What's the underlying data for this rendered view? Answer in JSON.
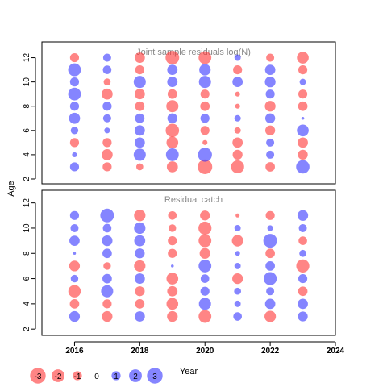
{
  "colors": {
    "positive": "#3333ff",
    "negative": "#ff3333",
    "panel_title": "#888888",
    "axis": "#000000"
  },
  "ylabel": "Age",
  "xlabel": "Year",
  "legend": {
    "values": [
      -3,
      -2,
      -1,
      0,
      1,
      2,
      3
    ]
  },
  "chart_data": [
    {
      "type": "scatter",
      "subtype": "bubble",
      "title": "Joint sample residuals log(N)",
      "xlim": [
        2015,
        2024
      ],
      "ylim": [
        1.6,
        13.3
      ],
      "xticks": [
        2016,
        2018,
        2020,
        2022,
        2024
      ],
      "yticks": [
        2,
        4,
        6,
        8,
        10,
        12
      ],
      "years": [
        2016,
        2017,
        2018,
        2019,
        2020,
        2021,
        2022,
        2023
      ],
      "ages": [
        3,
        4,
        5,
        6,
        7,
        8,
        9,
        10,
        11,
        12
      ],
      "residuals": [
        [
          1.0,
          0.3,
          -1.0,
          0.7,
          1.5,
          1.0,
          2.0,
          1.0,
          2.0,
          -1.0
        ],
        [
          -1.0,
          -1.5,
          -1.0,
          0.4,
          0.8,
          1.0,
          -1.5,
          -0.6,
          0.9,
          0.8
        ],
        [
          -0.6,
          1.8,
          1.3,
          1.3,
          1.1,
          -1.1,
          -1.3,
          1.8,
          -1.0,
          -1.3
        ],
        [
          -1.5,
          2.0,
          -1.7,
          -2.2,
          1.2,
          -1.8,
          -1.1,
          1.3,
          1.3,
          -2.3
        ],
        [
          -2.6,
          2.4,
          -0.3,
          -1.0,
          1.0,
          -1.1,
          -1.0,
          1.8,
          1.6,
          -2.0
        ],
        [
          -2.1,
          -1.2,
          -1.3,
          -0.5,
          0.5,
          -0.3,
          -0.3,
          1.3,
          -1.0,
          0.5
        ],
        [
          -1.1,
          0.8,
          0.8,
          -1.2,
          1.2,
          -1.4,
          1.0,
          1.4,
          1.3,
          -0.8
        ],
        [
          2.2,
          -1.2,
          -1.3,
          1.7,
          0.1,
          -1.1,
          -1.0,
          0.5,
          -1.0,
          -1.7
        ]
      ]
    },
    {
      "type": "scatter",
      "subtype": "bubble",
      "title": "Residual catch",
      "xlim": [
        2015,
        2024
      ],
      "ylim": [
        1.5,
        13.0
      ],
      "xticks": [
        2016,
        2018,
        2020,
        2022,
        2024
      ],
      "yticks": [
        2,
        4,
        6,
        8,
        10,
        12
      ],
      "years": [
        2016,
        2017,
        2018,
        2019,
        2020,
        2021,
        2022,
        2023
      ],
      "ages": [
        3,
        4,
        5,
        6,
        7,
        8,
        9,
        10,
        11
      ],
      "residuals": [
        [
          1.4,
          -1.1,
          -1.9,
          0.7,
          -1.4,
          0.1,
          1.3,
          0.8,
          1.0
        ],
        [
          -1.4,
          -1.0,
          1.8,
          1.1,
          -0.7,
          1.1,
          1.4,
          0.9,
          2.3
        ],
        [
          1.3,
          -1.1,
          -1.2,
          1.3,
          -1.6,
          1.2,
          1.5,
          1.6,
          -1.6
        ],
        [
          -1.4,
          -1.7,
          -1.3,
          -1.7,
          0.1,
          -1.0,
          -1.0,
          -0.7,
          -0.9
        ],
        [
          -2.0,
          1.8,
          1.0,
          0.9,
          2.0,
          -1.4,
          -2.0,
          -2.1,
          -1.2
        ],
        [
          0.9,
          0.5,
          0.6,
          -1.4,
          0.5,
          0.3,
          -1.6,
          0.5,
          -0.2
        ],
        [
          -1.6,
          1.3,
          0.8,
          2.1,
          1.1,
          -1.1,
          2.3,
          0.4,
          -1.0
        ],
        [
          1.2,
          1.3,
          -1.1,
          1.0,
          -2.1,
          0.6,
          -0.9,
          0.8,
          1.4
        ]
      ]
    }
  ]
}
